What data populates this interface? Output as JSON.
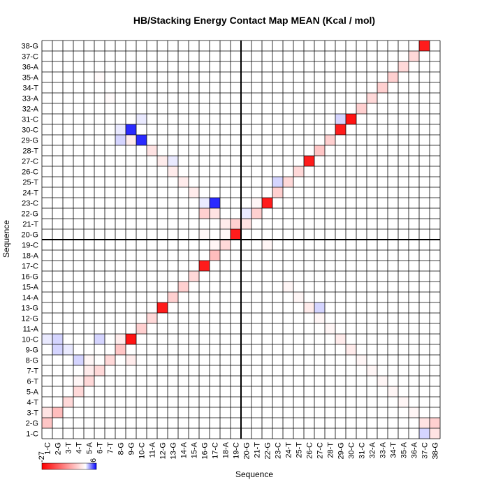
{
  "chart_data": {
    "type": "heatmap",
    "title": "HB/Stacking Energy Contact Map MEAN (Kcal / mol)",
    "xlabel": "Sequence",
    "ylabel": "Sequence",
    "labels": [
      "1-C",
      "2-G",
      "3-T",
      "4-T",
      "5-A",
      "6-T",
      "7-T",
      "8-G",
      "9-G",
      "10-C",
      "11-A",
      "12-G",
      "13-G",
      "14-A",
      "15-A",
      "16-G",
      "17-C",
      "18-A",
      "19-C",
      "20-G",
      "21-T",
      "22-G",
      "23-C",
      "24-T",
      "25-T",
      "26-C",
      "27-C",
      "28-T",
      "29-G",
      "30-C",
      "31-C",
      "32-A",
      "33-A",
      "34-T",
      "35-A",
      "36-A",
      "37-C",
      "38-G"
    ],
    "colorbar": {
      "min": -27,
      "max": 6,
      "min_label": "-27",
      "max_label": "6",
      "colors": [
        "#ff0000",
        "#ffffff",
        "#0000ff"
      ]
    },
    "cells": [
      [
        1,
        2,
        -6
      ],
      [
        1,
        3,
        -3
      ],
      [
        1,
        10,
        0.5
      ],
      [
        2,
        3,
        -7
      ],
      [
        2,
        9,
        1
      ],
      [
        2,
        10,
        1
      ],
      [
        3,
        4,
        -4
      ],
      [
        3,
        9,
        0.5
      ],
      [
        4,
        5,
        -4
      ],
      [
        4,
        8,
        1
      ],
      [
        4,
        6,
        -1
      ],
      [
        5,
        6,
        -4
      ],
      [
        5,
        7,
        -2
      ],
      [
        5,
        8,
        -1
      ],
      [
        6,
        7,
        -4
      ],
      [
        6,
        10,
        1
      ],
      [
        6,
        35,
        -0.5
      ],
      [
        7,
        8,
        -4
      ],
      [
        7,
        33,
        -0.5
      ],
      [
        8,
        9,
        -6
      ],
      [
        8,
        10,
        -2
      ],
      [
        8,
        29,
        1
      ],
      [
        8,
        30,
        0.5
      ],
      [
        9,
        10,
        -25
      ],
      [
        9,
        29,
        -2
      ],
      [
        9,
        30,
        5
      ],
      [
        9,
        8,
        -2
      ],
      [
        10,
        11,
        -5
      ],
      [
        10,
        29,
        5
      ],
      [
        10,
        31,
        0.5
      ],
      [
        11,
        12,
        -4
      ],
      [
        11,
        28,
        -3
      ],
      [
        12,
        13,
        -24
      ],
      [
        12,
        27,
        -2
      ],
      [
        13,
        14,
        -5
      ],
      [
        13,
        26,
        -2
      ],
      [
        13,
        27,
        0.5
      ],
      [
        14,
        15,
        -5
      ],
      [
        14,
        25,
        -2
      ],
      [
        15,
        16,
        -4
      ],
      [
        15,
        24,
        -2
      ],
      [
        16,
        17,
        -24
      ],
      [
        16,
        22,
        -5
      ],
      [
        16,
        23,
        0.5
      ],
      [
        16,
        20,
        -1
      ],
      [
        17,
        18,
        -7
      ],
      [
        17,
        22,
        -3
      ],
      [
        17,
        23,
        5
      ],
      [
        17,
        19,
        -1
      ],
      [
        18,
        19,
        -4
      ],
      [
        18,
        21,
        -2
      ],
      [
        18,
        20,
        -1
      ],
      [
        19,
        20,
        -24
      ],
      [
        19,
        21,
        -5
      ],
      [
        20,
        21,
        -3
      ],
      [
        20,
        22,
        0.5
      ],
      [
        21,
        22,
        -5
      ],
      [
        21,
        23,
        -1
      ],
      [
        22,
        23,
        -24
      ],
      [
        22,
        19,
        -1
      ],
      [
        23,
        24,
        -5
      ],
      [
        23,
        25,
        1
      ],
      [
        24,
        25,
        -4
      ],
      [
        24,
        15,
        -1
      ],
      [
        25,
        26,
        -4
      ],
      [
        25,
        14,
        -1
      ],
      [
        26,
        27,
        -24
      ],
      [
        26,
        13,
        -2
      ],
      [
        27,
        28,
        -6
      ],
      [
        27,
        12,
        -1
      ],
      [
        27,
        13,
        1
      ],
      [
        28,
        29,
        -5
      ],
      [
        28,
        11,
        -1
      ],
      [
        29,
        30,
        -24
      ],
      [
        29,
        10,
        -2
      ],
      [
        29,
        31,
        1
      ],
      [
        30,
        31,
        -25
      ],
      [
        30,
        9,
        -2
      ],
      [
        31,
        32,
        -5
      ],
      [
        31,
        8,
        -1
      ],
      [
        32,
        33,
        -4
      ],
      [
        32,
        7,
        -1
      ],
      [
        33,
        34,
        -5
      ],
      [
        33,
        6,
        -1
      ],
      [
        34,
        35,
        -5
      ],
      [
        34,
        5,
        -1
      ],
      [
        35,
        36,
        -4
      ],
      [
        35,
        4,
        -1
      ],
      [
        36,
        37,
        -4
      ],
      [
        36,
        3,
        -1
      ],
      [
        37,
        38,
        -24
      ],
      [
        37,
        2,
        -3
      ],
      [
        37,
        1,
        1
      ],
      [
        38,
        1,
        -3
      ],
      [
        38,
        2,
        -5
      ]
    ]
  }
}
